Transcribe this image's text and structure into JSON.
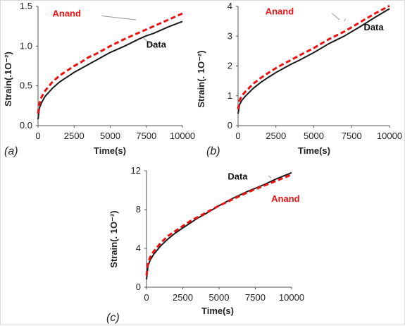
{
  "colors": {
    "data": "#1a1a1a",
    "anand": "#ee1111",
    "leader": "#999999"
  },
  "chart_data": [
    {
      "type": "line",
      "panel_label": "(a)",
      "xlabel": "Time(s)",
      "ylabel": "Strain(.1O⁻²)",
      "xlim": [
        0,
        10000
      ],
      "ylim": [
        0,
        1.5
      ],
      "xticks": [
        "0",
        "2500",
        "5000",
        "7500",
        "10000"
      ],
      "yticks": [
        "0.0",
        "0.5",
        "1.0",
        "1.5"
      ],
      "grid": false,
      "series": [
        {
          "name": "Data",
          "x": [
            0,
            100,
            250,
            500,
            1000,
            1500,
            2000,
            2500,
            3000,
            3500,
            4000,
            5000,
            6000,
            7000,
            7500,
            8000,
            9000,
            10000
          ],
          "y": [
            0.08,
            0.22,
            0.29,
            0.37,
            0.47,
            0.55,
            0.61,
            0.67,
            0.72,
            0.77,
            0.82,
            0.92,
            1.0,
            1.09,
            1.13,
            1.16,
            1.24,
            1.31
          ]
        },
        {
          "name": "Anand",
          "x": [
            0,
            100,
            250,
            500,
            1000,
            1500,
            2000,
            2500,
            3000,
            3500,
            4000,
            5000,
            6000,
            7000,
            7500,
            8000,
            9000,
            10000
          ],
          "y": [
            0.15,
            0.28,
            0.36,
            0.44,
            0.55,
            0.63,
            0.69,
            0.75,
            0.8,
            0.86,
            0.9,
            1.0,
            1.09,
            1.17,
            1.21,
            1.25,
            1.33,
            1.41
          ]
        }
      ]
    },
    {
      "type": "line",
      "panel_label": "(b)",
      "xlabel": "Time(s)",
      "ylabel": "Strain(. 1O⁻²)",
      "xlim": [
        0,
        10000
      ],
      "ylim": [
        0,
        4
      ],
      "xticks": [
        "0",
        "2500",
        "5000",
        "7500",
        "10000"
      ],
      "yticks": [
        "0",
        "1",
        "2",
        "3",
        "4"
      ],
      "grid": false,
      "series": [
        {
          "name": "Data",
          "x": [
            0,
            100,
            250,
            500,
            1000,
            1500,
            2000,
            2500,
            3000,
            3500,
            4000,
            5000,
            6000,
            7000,
            7500,
            8000,
            9000,
            10000
          ],
          "y": [
            0.4,
            0.7,
            0.85,
            1.0,
            1.25,
            1.45,
            1.62,
            1.78,
            1.92,
            2.06,
            2.18,
            2.45,
            2.75,
            3.0,
            3.15,
            3.3,
            3.62,
            3.92
          ]
        },
        {
          "name": "Anand",
          "x": [
            0,
            100,
            250,
            500,
            1000,
            1500,
            2000,
            2500,
            3000,
            3500,
            4000,
            5000,
            6000,
            7000,
            7500,
            8000,
            9000,
            10000
          ],
          "y": [
            0.55,
            0.85,
            1.0,
            1.15,
            1.4,
            1.6,
            1.77,
            1.93,
            2.07,
            2.2,
            2.34,
            2.6,
            2.9,
            3.15,
            3.3,
            3.45,
            3.75,
            4.02
          ]
        }
      ]
    },
    {
      "type": "line",
      "panel_label": "(c)",
      "xlabel": "Time(s)",
      "ylabel": "Strain(. 1O⁻²)",
      "xlim": [
        0,
        10000
      ],
      "ylim": [
        0,
        12
      ],
      "xticks": [
        "0",
        "2500",
        "5000",
        "7500",
        "10000"
      ],
      "yticks": [
        "0",
        "4",
        "8",
        "12"
      ],
      "grid": false,
      "series": [
        {
          "name": "Data",
          "x": [
            0,
            100,
            250,
            500,
            1000,
            1500,
            2000,
            2500,
            3000,
            3500,
            4000,
            5000,
            6000,
            7000,
            7500,
            8000,
            9000,
            10000
          ],
          "y": [
            0.8,
            2.2,
            2.8,
            3.4,
            4.3,
            5.0,
            5.6,
            6.1,
            6.6,
            7.1,
            7.5,
            8.4,
            9.2,
            9.9,
            10.2,
            10.5,
            11.2,
            11.8
          ]
        },
        {
          "name": "Anand",
          "x": [
            0,
            100,
            250,
            500,
            1000,
            1500,
            2000,
            2500,
            3000,
            3500,
            4000,
            5000,
            6000,
            7000,
            7500,
            8000,
            9000,
            10000
          ],
          "y": [
            1.2,
            2.5,
            3.1,
            3.7,
            4.6,
            5.3,
            5.8,
            6.3,
            6.8,
            7.2,
            7.6,
            8.4,
            9.1,
            9.8,
            10.1,
            10.4,
            11.0,
            11.6
          ]
        }
      ]
    }
  ]
}
